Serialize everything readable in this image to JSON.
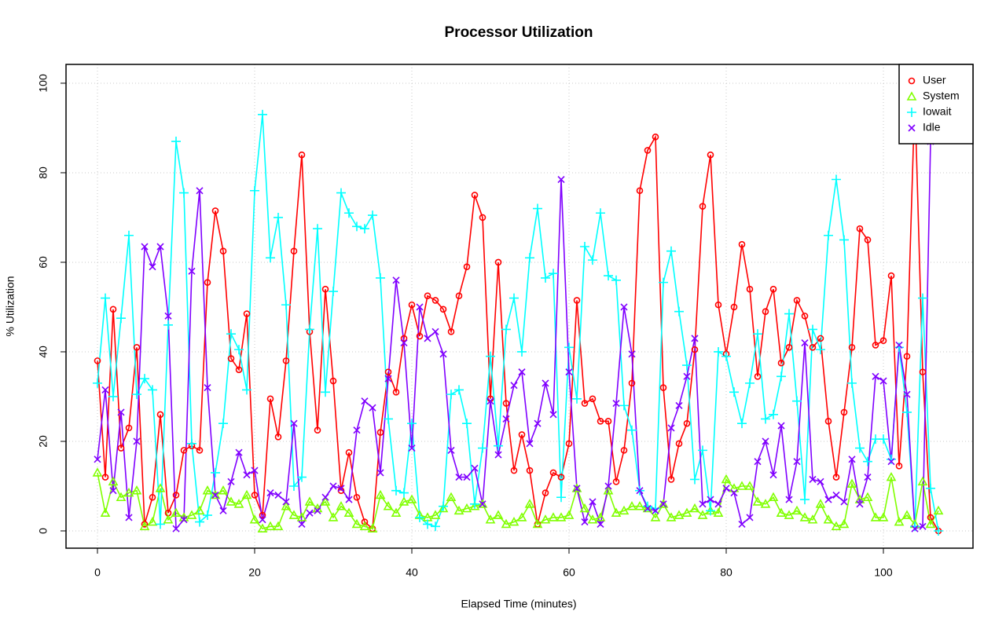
{
  "chart_data": {
    "type": "line",
    "title": "Processor Utilization",
    "x_label": "Elapsed Time (minutes)",
    "y_label": "% Utilization",
    "x": [
      0,
      1,
      2,
      3,
      4,
      5,
      6,
      7,
      8,
      9,
      10,
      11,
      12,
      13,
      14,
      15,
      16,
      17,
      18,
      19,
      20,
      21,
      22,
      23,
      24,
      25,
      26,
      27,
      28,
      29,
      30,
      31,
      32,
      33,
      34,
      35,
      36,
      37,
      38,
      39,
      40,
      41,
      42,
      43,
      44,
      45,
      46,
      47,
      48,
      49,
      50,
      51,
      52,
      53,
      54,
      55,
      56,
      57,
      58,
      59,
      60,
      61,
      62,
      63,
      64,
      65,
      66,
      67,
      68,
      69,
      70,
      71,
      72,
      73,
      74,
      75,
      76,
      77,
      78,
      79,
      80,
      81,
      82,
      83,
      84,
      85,
      86,
      87,
      88,
      89,
      90,
      91,
      92,
      93,
      94,
      95,
      96,
      97,
      98,
      99,
      100,
      101,
      102,
      103,
      104,
      105,
      106,
      107
    ],
    "xlim": [
      -4,
      111.4
    ],
    "xticks": [
      0,
      20,
      40,
      60,
      80,
      100
    ],
    "ylim": [
      -3.86,
      104.2
    ],
    "yticks": [
      0,
      20,
      40,
      60,
      80,
      100
    ],
    "grid": true,
    "legend": "topright",
    "series": [
      {
        "name": "User",
        "color": "#ff0000",
        "marker": "circle",
        "values": [
          38,
          12,
          49.5,
          18.5,
          23,
          41,
          1.5,
          7.5,
          26,
          4,
          8,
          18,
          19,
          18,
          55.5,
          71.5,
          62.5,
          38.5,
          36,
          48.5,
          8,
          3.5,
          29.5,
          21,
          38,
          62.5,
          84,
          44.5,
          22.5,
          54,
          33.5,
          9,
          17.5,
          7.5,
          2,
          0.5,
          22,
          35.5,
          31,
          43,
          50.5,
          43.5,
          52.5,
          51.5,
          49.5,
          44.5,
          52.5,
          59,
          75,
          70,
          29.5,
          60,
          28.5,
          13.5,
          21.5,
          13.5,
          1.5,
          8.5,
          13,
          12,
          19.5,
          51.5,
          28.5,
          29.5,
          24.5,
          24.5,
          11,
          18,
          33,
          76,
          85,
          88,
          32,
          11.5,
          19.5,
          24,
          40.5,
          72.5,
          84,
          50.5,
          39.5,
          50,
          64,
          54,
          34.5,
          49,
          54,
          37.5,
          41,
          51.5,
          48,
          41,
          43,
          24.5,
          12,
          26.5,
          41,
          67.5,
          65,
          41.5,
          42.5,
          57,
          14.5,
          39,
          97,
          35.5,
          3,
          0
        ]
      },
      {
        "name": "System",
        "color": "#80ff00",
        "marker": "triangle",
        "values": [
          13,
          4,
          11,
          7.5,
          8.5,
          9,
          1,
          2,
          9.5,
          2.5,
          4,
          3,
          3.5,
          4.5,
          9,
          8,
          9,
          6.5,
          6,
          8,
          2.5,
          0.5,
          1,
          1,
          5.5,
          3.5,
          3,
          6.5,
          5,
          6.5,
          3,
          5.5,
          4,
          1.5,
          1,
          0.5,
          8,
          5.5,
          4,
          6.5,
          7,
          3.5,
          3,
          3.5,
          5,
          7.5,
          4.5,
          5,
          5.5,
          6,
          2.5,
          3.5,
          1.5,
          2,
          3,
          6,
          1.5,
          2.5,
          3,
          3,
          3.5,
          9.5,
          5,
          2.5,
          3,
          9,
          4,
          4.5,
          5.5,
          5.5,
          5,
          3,
          6,
          3,
          3.5,
          4,
          5,
          3.5,
          4.5,
          4,
          11.5,
          9.5,
          10,
          10,
          6.5,
          6,
          7.5,
          4,
          3.5,
          4.5,
          3,
          2.5,
          6,
          2.5,
          1,
          1.5,
          10.5,
          7,
          7.5,
          3,
          3,
          12,
          2,
          3.5,
          1.5,
          11,
          1.5,
          4.5
        ]
      },
      {
        "name": "Iowait",
        "color": "#00ffff",
        "marker": "plus",
        "values": [
          33,
          52,
          30,
          47.5,
          66,
          30.5,
          34,
          31.5,
          1.5,
          46,
          87,
          75.5,
          19.5,
          2,
          3.5,
          13,
          24,
          44,
          40.5,
          31.5,
          76,
          93,
          61,
          70,
          50.5,
          10,
          12,
          45,
          67.5,
          31,
          53.5,
          75.5,
          71,
          68,
          67.5,
          70.5,
          56.5,
          25,
          9,
          8.5,
          24,
          3,
          1.5,
          1,
          5.5,
          30.5,
          31.5,
          24,
          6,
          18.5,
          39,
          19,
          45,
          52,
          40,
          61,
          72,
          56.5,
          57.5,
          7.5,
          41,
          29.5,
          63.5,
          60.5,
          71,
          57,
          56,
          28,
          22.5,
          9,
          5.5,
          5,
          55.5,
          62.5,
          49,
          37,
          11.5,
          18,
          4.5,
          40,
          39,
          31,
          24,
          33,
          44,
          25,
          26,
          34.5,
          48.5,
          29,
          7,
          45,
          40.5,
          66,
          78.5,
          65,
          33,
          18.5,
          15.5,
          20.5,
          20.5,
          16,
          41,
          26.5,
          1,
          52,
          9.5,
          0
        ]
      },
      {
        "name": "Idle",
        "color": "#8000ff",
        "marker": "cross",
        "values": [
          16,
          31.5,
          9,
          26.5,
          3,
          20,
          63.5,
          59,
          63.5,
          48,
          0.5,
          2.5,
          58,
          76,
          32,
          8,
          4.5,
          11,
          17.5,
          12.5,
          13.5,
          2.5,
          8.5,
          8,
          6.5,
          24,
          1.5,
          4,
          4.5,
          7.5,
          10,
          9.5,
          7,
          22.5,
          29,
          27.5,
          13,
          34,
          56,
          42,
          18.5,
          50,
          43,
          44.5,
          39.5,
          18,
          12,
          12,
          14,
          6,
          29,
          17,
          25,
          32.5,
          35.5,
          19.5,
          24,
          33,
          26,
          78.5,
          35.5,
          9.5,
          2,
          6.5,
          1.5,
          10,
          28.5,
          50,
          39.5,
          9,
          5,
          4.5,
          6,
          23,
          28,
          34.5,
          43,
          6,
          7,
          6,
          9.5,
          8.5,
          1.5,
          3,
          15.5,
          20,
          12.5,
          23.5,
          7,
          15.5,
          42,
          11.5,
          11,
          7,
          8,
          6.5,
          16,
          6,
          12,
          34.5,
          33.5,
          15.5,
          41.5,
          30.5,
          0.5,
          1,
          87,
          95.5
        ]
      }
    ]
  }
}
